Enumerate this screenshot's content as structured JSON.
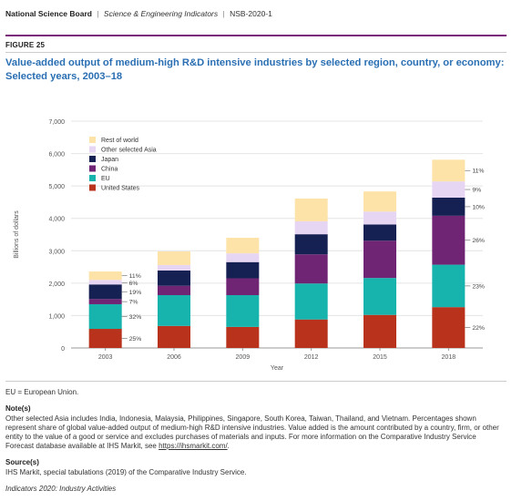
{
  "header": {
    "org": "National Science Board",
    "publication": "Science & Engineering Indicators",
    "report_id": "NSB-2020-1",
    "separator": "|"
  },
  "figure": {
    "label": "FIGURE 25",
    "title": "Value-added output of medium-high R&D intensive industries by selected region, country, or economy: Selected years, 2003–18"
  },
  "chart_data": {
    "type": "bar",
    "stacked": true,
    "categories": [
      "2003",
      "2006",
      "2009",
      "2012",
      "2015",
      "2018"
    ],
    "xlabel": "Year",
    "ylabel": "Billions of dollars",
    "ylim": [
      0,
      7000
    ],
    "yticks": [
      0,
      1000,
      2000,
      3000,
      4000,
      5000,
      6000,
      7000
    ],
    "ytick_labels": [
      "0",
      "1,000",
      "2,000",
      "3,000",
      "4,000",
      "5,000",
      "6,000",
      "7,000"
    ],
    "grid": true,
    "legend_position": "top-left",
    "series": [
      {
        "name": "United States",
        "color": "#b8321c",
        "values": [
          590,
          680,
          650,
          880,
          1020,
          1260
        ]
      },
      {
        "name": "EU",
        "color": "#17b3ad",
        "values": [
          760,
          950,
          980,
          1110,
          1140,
          1310
        ]
      },
      {
        "name": "China",
        "color": "#702574",
        "values": [
          160,
          290,
          520,
          900,
          1150,
          1510
        ]
      },
      {
        "name": "Japan",
        "color": "#152053",
        "values": [
          450,
          470,
          500,
          620,
          500,
          560
        ]
      },
      {
        "name": "Other selected Asia",
        "color": "#e6d5f3",
        "values": [
          140,
          170,
          270,
          400,
          400,
          500
        ]
      },
      {
        "name": "Rest of world",
        "color": "#fde3a7",
        "values": [
          260,
          420,
          480,
          700,
          620,
          670
        ]
      }
    ],
    "legend_order": [
      "Rest of world",
      "Other selected Asia",
      "Japan",
      "China",
      "EU",
      "United States"
    ],
    "annotations_2003": [
      "11%",
      "6%",
      "19%",
      "7%",
      "32%",
      "25%"
    ],
    "annotations_2018": [
      "11%",
      "9%",
      "10%",
      "26%",
      "23%",
      "22%"
    ]
  },
  "notes": {
    "abbreviation": "EU = European Union.",
    "note_heading": "Note(s)",
    "note_text": "Other selected Asia includes India, Indonesia, Malaysia, Philippines, Singapore, South Korea, Taiwan, Thailand, and Vietnam. Percentages shown represent share of global value-added output of medium-high R&D intensive industries. Value added is the amount contributed by a country, firm, or other entity to the value of a good or service and excludes purchases of materials and inputs. For more information on the Comparative Industry Service Forecast database available at IHS Markit, see ",
    "note_link": "https://ihsmarkit.com/",
    "note_end": ".",
    "source_heading": "Source(s)",
    "source_text": "IHS Markit, special tabulations (2019) of the Comparative Industry Service.",
    "footer": "Indicators 2020: Industry Activities"
  }
}
